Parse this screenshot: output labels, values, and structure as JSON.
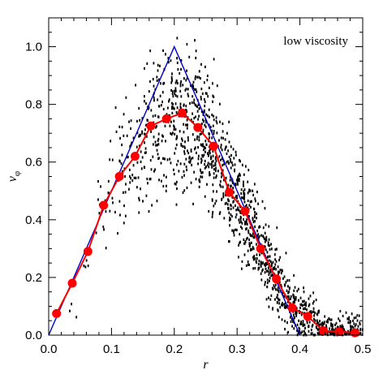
{
  "chart_data": {
    "type": "scatter",
    "xlabel": "r",
    "ylabel": "v",
    "ylabel_subscript": "φ",
    "annotation": "low viscosity",
    "xlim": [
      0.0,
      0.5
    ],
    "ylim": [
      0.0,
      1.1
    ],
    "x_ticks": [
      0.0,
      0.1,
      0.2,
      0.3,
      0.4,
      0.5
    ],
    "x_tick_labels": [
      "0.0",
      "0.1",
      "0.2",
      "0.3",
      "0.4",
      "0.5"
    ],
    "y_ticks": [
      0.0,
      0.2,
      0.4,
      0.6,
      0.8,
      1.0
    ],
    "y_tick_labels": [
      "0.0",
      "0.2",
      "0.4",
      "0.6",
      "0.8",
      "1.0"
    ],
    "grid": false,
    "colors": {
      "analytic": "#0000cc",
      "profile": "#ff0000",
      "particles": "#000000"
    },
    "series": [
      {
        "kind": "line",
        "x": [
          0.0,
          0.2,
          0.4
        ],
        "y": [
          0.0,
          1.0,
          0.0
        ]
      },
      {
        "kind": "line-markers",
        "x": [
          0.0125,
          0.0375,
          0.0625,
          0.0875,
          0.1125,
          0.1375,
          0.1625,
          0.1875,
          0.2125,
          0.2375,
          0.2625,
          0.2875,
          0.3125,
          0.3375,
          0.3625,
          0.3875,
          0.4125,
          0.4375,
          0.4625,
          0.4875
        ],
        "y": [
          0.075,
          0.18,
          0.29,
          0.45,
          0.55,
          0.62,
          0.725,
          0.75,
          0.77,
          0.72,
          0.655,
          0.495,
          0.43,
          0.3,
          0.195,
          0.095,
          0.065,
          0.015,
          0.012,
          0.008
        ]
      },
      {
        "kind": "scatter",
        "count": 1500,
        "description": "particle velocities scattered around the averaged profile"
      }
    ]
  }
}
